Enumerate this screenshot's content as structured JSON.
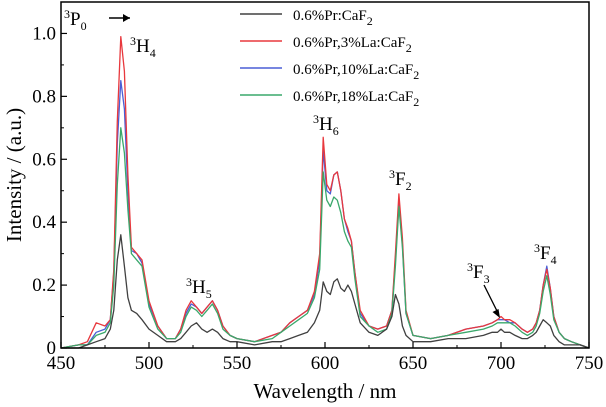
{
  "chart_data": {
    "type": "line",
    "xlabel": "Wavelength / nm",
    "ylabel": "Intensity / (a.u.)",
    "xlim": [
      450,
      750
    ],
    "ylim": [
      0,
      1.1
    ],
    "xticks": [
      "450",
      "500",
      "550",
      "600",
      "650",
      "700",
      "750"
    ],
    "yticks": [
      "0",
      "0.2",
      "0.4",
      "0.6",
      "0.8",
      "1.0"
    ],
    "grid": false,
    "legend_position": "top-center",
    "legend": [
      {
        "parts": [
          [
            "n",
            "0.6%Pr:CaF"
          ],
          [
            "sub",
            "2"
          ]
        ]
      },
      {
        "parts": [
          [
            "n",
            "0.6%Pr,3%La:CaF"
          ],
          [
            "sub",
            "2"
          ]
        ]
      },
      {
        "parts": [
          [
            "n",
            "0.6%Pr,10%La:CaF"
          ],
          [
            "sub",
            "2"
          ]
        ]
      },
      {
        "parts": [
          [
            "n",
            "0.6%Pr,18%La:CaF"
          ],
          [
            "sub",
            "2"
          ]
        ]
      }
    ],
    "annotations": [
      {
        "id": "3P0",
        "parts": [
          [
            "sup",
            "3"
          ],
          [
            "n",
            "P"
          ],
          [
            "sub",
            "0"
          ]
        ],
        "arrow": "right"
      },
      {
        "id": "3H4",
        "parts": [
          [
            "sup",
            "3"
          ],
          [
            "n",
            "H"
          ],
          [
            "sub",
            "4"
          ]
        ]
      },
      {
        "id": "3H5",
        "parts": [
          [
            "sup",
            "3"
          ],
          [
            "n",
            "H"
          ],
          [
            "sub",
            "5"
          ]
        ]
      },
      {
        "id": "3H6",
        "parts": [
          [
            "sup",
            "3"
          ],
          [
            "n",
            "H"
          ],
          [
            "sub",
            "6"
          ]
        ]
      },
      {
        "id": "3F2",
        "parts": [
          [
            "sup",
            "3"
          ],
          [
            "n",
            "F"
          ],
          [
            "sub",
            "2"
          ]
        ]
      },
      {
        "id": "3F3",
        "parts": [
          [
            "sup",
            "3"
          ],
          [
            "n",
            "F"
          ],
          [
            "sub",
            "3"
          ]
        ],
        "arrow": "down-right"
      },
      {
        "id": "3F4",
        "parts": [
          [
            "sup",
            "3"
          ],
          [
            "n",
            "F"
          ],
          [
            "sub",
            "4"
          ]
        ]
      }
    ],
    "x": [
      450,
      460,
      465,
      470,
      475,
      478,
      480,
      482,
      484,
      486,
      488,
      490,
      493,
      496,
      500,
      505,
      510,
      515,
      518,
      521,
      524,
      527,
      530,
      533,
      536,
      539,
      542,
      546,
      550,
      560,
      570,
      575,
      580,
      585,
      590,
      594,
      597,
      599,
      601,
      603,
      605,
      607,
      609,
      611,
      613,
      615,
      617,
      620,
      625,
      630,
      635,
      638,
      640,
      642,
      644,
      646,
      650,
      660,
      670,
      680,
      690,
      695,
      698,
      700,
      702,
      705,
      708,
      712,
      715,
      718,
      720,
      722,
      724,
      726,
      728,
      730,
      733,
      736,
      740,
      745,
      750
    ],
    "series": [
      {
        "name": "0.6%Pr:CaF2",
        "color": "#404040",
        "values": [
          0,
          0,
          0.01,
          0.02,
          0.03,
          0.06,
          0.12,
          0.28,
          0.36,
          0.26,
          0.16,
          0.12,
          0.11,
          0.09,
          0.06,
          0.04,
          0.02,
          0.02,
          0.03,
          0.05,
          0.07,
          0.08,
          0.06,
          0.05,
          0.06,
          0.05,
          0.03,
          0.02,
          0.02,
          0.01,
          0.02,
          0.02,
          0.03,
          0.04,
          0.05,
          0.08,
          0.12,
          0.21,
          0.18,
          0.17,
          0.21,
          0.22,
          0.19,
          0.18,
          0.2,
          0.18,
          0.14,
          0.08,
          0.05,
          0.04,
          0.06,
          0.1,
          0.17,
          0.14,
          0.07,
          0.04,
          0.02,
          0.02,
          0.03,
          0.03,
          0.04,
          0.05,
          0.05,
          0.06,
          0.05,
          0.05,
          0.04,
          0.03,
          0.03,
          0.04,
          0.05,
          0.07,
          0.09,
          0.08,
          0.07,
          0.04,
          0.02,
          0.01,
          0.01,
          0.01,
          0
        ]
      },
      {
        "name": "0.6%Pr,3%La:CaF2",
        "color": "#e8383d",
        "values": [
          0,
          0.01,
          0.02,
          0.08,
          0.07,
          0.09,
          0.25,
          0.72,
          0.99,
          0.88,
          0.55,
          0.32,
          0.3,
          0.28,
          0.15,
          0.07,
          0.03,
          0.03,
          0.06,
          0.12,
          0.15,
          0.13,
          0.11,
          0.13,
          0.15,
          0.12,
          0.07,
          0.04,
          0.03,
          0.02,
          0.04,
          0.05,
          0.08,
          0.1,
          0.12,
          0.18,
          0.3,
          0.67,
          0.52,
          0.5,
          0.55,
          0.56,
          0.5,
          0.41,
          0.38,
          0.34,
          0.24,
          0.12,
          0.07,
          0.06,
          0.07,
          0.12,
          0.3,
          0.49,
          0.35,
          0.12,
          0.04,
          0.03,
          0.04,
          0.06,
          0.07,
          0.08,
          0.09,
          0.1,
          0.09,
          0.09,
          0.08,
          0.06,
          0.05,
          0.06,
          0.08,
          0.12,
          0.2,
          0.25,
          0.19,
          0.1,
          0.05,
          0.03,
          0.02,
          0.01,
          0
        ]
      },
      {
        "name": "0.6%Pr,10%La:CaF2",
        "color": "#4a5ed6",
        "values": [
          0,
          0.01,
          0.01,
          0.05,
          0.06,
          0.09,
          0.24,
          0.65,
          0.85,
          0.76,
          0.5,
          0.31,
          0.3,
          0.27,
          0.14,
          0.07,
          0.03,
          0.03,
          0.06,
          0.11,
          0.14,
          0.13,
          0.11,
          0.13,
          0.15,
          0.12,
          0.07,
          0.04,
          0.03,
          0.02,
          0.04,
          0.05,
          0.08,
          0.1,
          0.12,
          0.17,
          0.28,
          0.63,
          0.5,
          0.49,
          0.55,
          0.56,
          0.5,
          0.41,
          0.37,
          0.34,
          0.24,
          0.11,
          0.07,
          0.06,
          0.07,
          0.12,
          0.28,
          0.46,
          0.33,
          0.11,
          0.04,
          0.03,
          0.04,
          0.06,
          0.07,
          0.08,
          0.09,
          0.09,
          0.09,
          0.08,
          0.08,
          0.06,
          0.05,
          0.06,
          0.08,
          0.12,
          0.2,
          0.26,
          0.19,
          0.1,
          0.05,
          0.03,
          0.02,
          0.01,
          0
        ]
      },
      {
        "name": "0.6%Pr,18%La:CaF2",
        "color": "#3aa86b",
        "values": [
          0,
          0.01,
          0.01,
          0.04,
          0.05,
          0.08,
          0.2,
          0.52,
          0.7,
          0.62,
          0.44,
          0.3,
          0.28,
          0.26,
          0.13,
          0.06,
          0.03,
          0.03,
          0.05,
          0.1,
          0.13,
          0.12,
          0.1,
          0.12,
          0.14,
          0.11,
          0.06,
          0.04,
          0.03,
          0.02,
          0.03,
          0.05,
          0.07,
          0.09,
          0.11,
          0.16,
          0.25,
          0.56,
          0.47,
          0.45,
          0.48,
          0.47,
          0.43,
          0.37,
          0.34,
          0.32,
          0.22,
          0.1,
          0.07,
          0.05,
          0.06,
          0.11,
          0.26,
          0.45,
          0.32,
          0.11,
          0.04,
          0.03,
          0.04,
          0.05,
          0.06,
          0.07,
          0.08,
          0.08,
          0.08,
          0.08,
          0.07,
          0.05,
          0.04,
          0.05,
          0.07,
          0.11,
          0.18,
          0.23,
          0.17,
          0.09,
          0.05,
          0.03,
          0.02,
          0.01,
          0
        ]
      }
    ]
  }
}
